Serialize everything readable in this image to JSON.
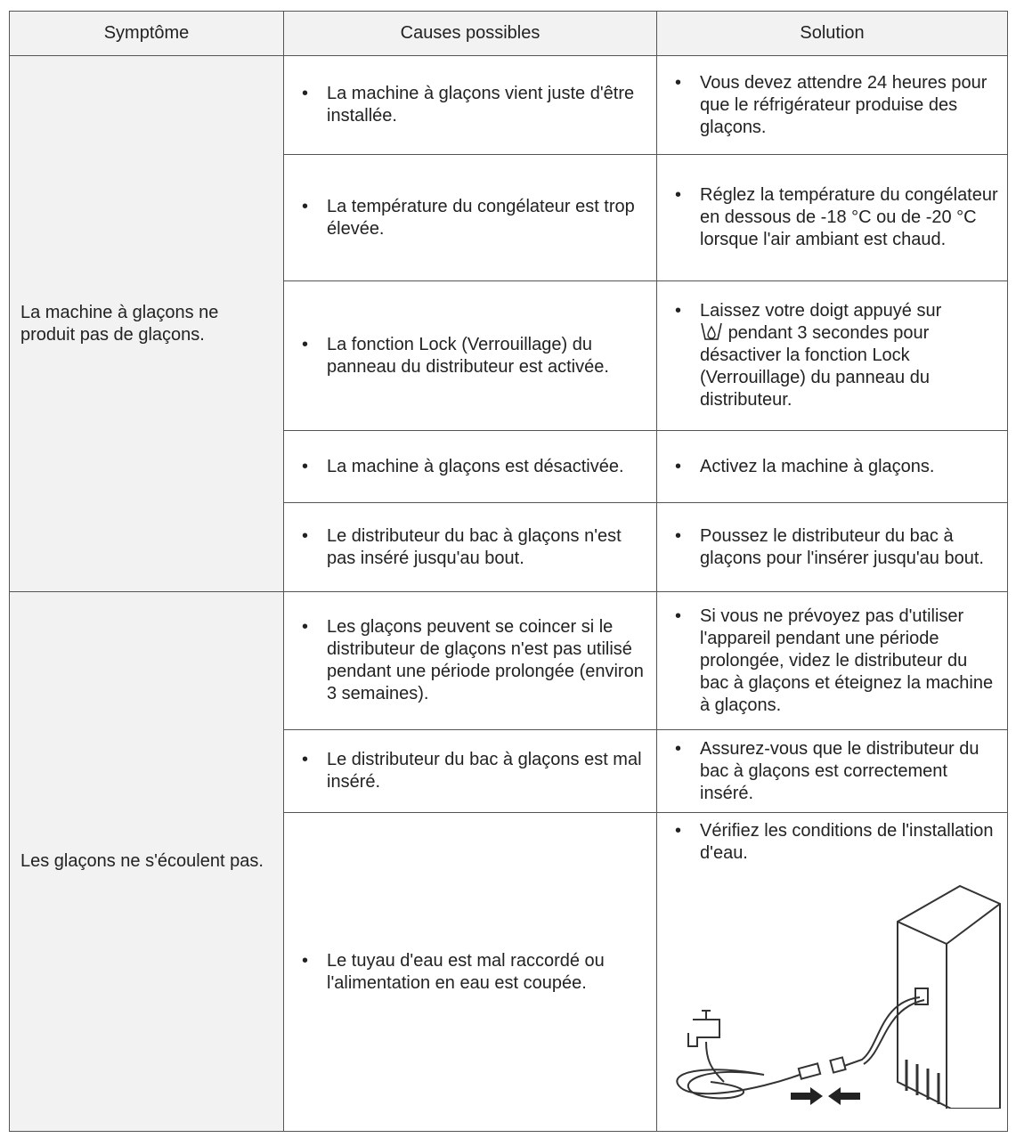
{
  "table": {
    "headers": [
      "Symptôme",
      "Causes possibles",
      "Solution"
    ],
    "groups": [
      {
        "symptom": "La machine à glaçons ne produit pas de glaçons.",
        "items": [
          {
            "cause": "La machine à glaçons vient juste d'être installée.",
            "solution": "Vous devez attendre 24 heures pour que le réfrigérateur produise des glaçons."
          },
          {
            "cause": "La température du congélateur est trop élevée.",
            "solution": "Réglez la température du congélateur en dessous de -18 °C ou de -20 °C lorsque l'air ambiant est chaud."
          },
          {
            "cause": "La fonction Lock (Verrouillage) du panneau du distributeur est activée.",
            "solution": [
              "Laissez votre doigt appuyé sur",
              "pendant 3 secondes pour désactiver la fonction Lock (Verrouillage) du panneau du distributeur."
            ]
          },
          {
            "cause": "La machine à glaçons est désactivée.",
            "solution": "Activez la machine à glaçons."
          },
          {
            "cause": "Le distributeur du bac à glaçons n'est pas inséré jusqu'au bout.",
            "solution": "Poussez le distributeur du bac à glaçons pour l'insérer jusqu'au bout."
          }
        ]
      },
      {
        "symptom": "Les glaçons ne s'écoulent pas.",
        "items": [
          {
            "cause": "Les glaçons peuvent se coincer si le distributeur de glaçons n'est pas utilisé pendant une période prolongée (environ 3 semaines).",
            "solution": "Si vous ne prévoyez pas d'utiliser l'appareil pendant une période prolongée, videz le distributeur du bac à glaçons et éteignez la machine à glaçons."
          },
          {
            "cause": "Le distributeur du bac à glaçons est mal inséré.",
            "solution": "Assurez-vous que le distributeur du bac à glaçons est correctement inséré."
          },
          {
            "cause": "Le tuyau d'eau est mal raccordé ou l'alimentation en eau est coupée.",
            "solution": "Vérifiez les conditions de l'installation d'eau."
          }
        ]
      }
    ]
  }
}
